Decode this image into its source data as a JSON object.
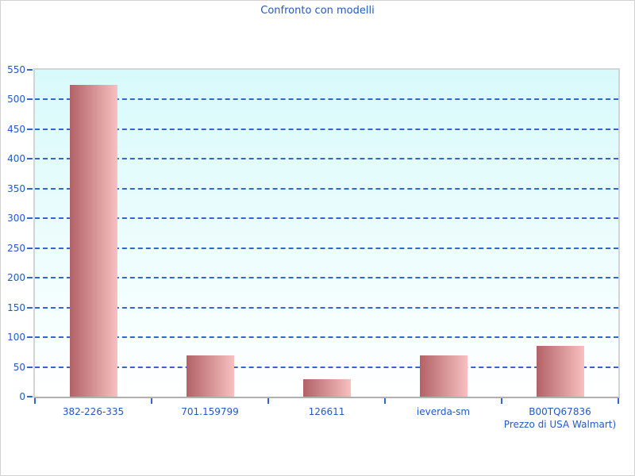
{
  "title": "Confronto con modelli",
  "chart_data": {
    "type": "bar",
    "title": "Confronto con modelli",
    "categories": [
      "382-226-335",
      "701.159799",
      "126611",
      "ieverda-sm",
      "B00TQ67836\nPrezzo di USA Walmart)"
    ],
    "values": [
      525,
      70,
      30,
      70,
      86
    ],
    "xlabel": "",
    "ylabel": "",
    "ylim": [
      0,
      550
    ],
    "ytick_step": 50,
    "grid": true,
    "gridline_style": "dashed",
    "legend_position": "none",
    "bar_gradient": [
      "#b26267",
      "#f8c0c0"
    ],
    "plot_background_gradient": [
      "#d8fafb",
      "#ffffff"
    ]
  },
  "colors": {
    "text": "#2159c6",
    "gridline": "#3366cc",
    "tick": "#3366cc",
    "plot_border": "#d4d4d4",
    "axis_bottom": "#b0b0b0",
    "canvas_border": "#d2d2d2"
  }
}
